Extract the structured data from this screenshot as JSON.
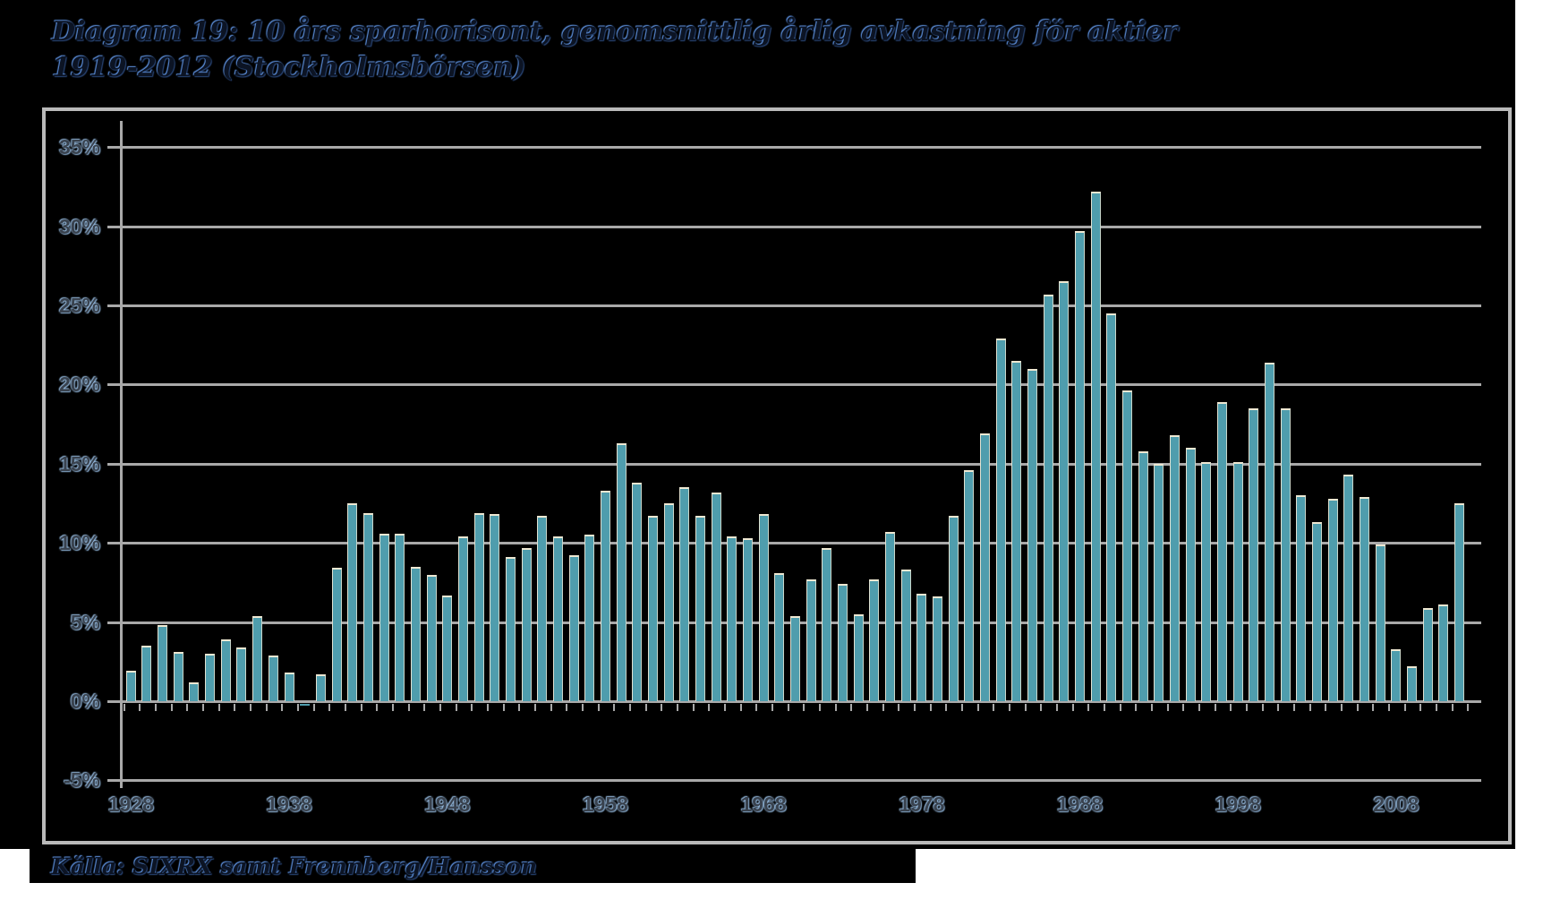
{
  "title": {
    "line1": "Diagram 19: 10 års sparhorisont, genomsnittlig årlig avkastning för aktier",
    "line2": "1919-2012 (Stockholmsbörsen)"
  },
  "source": {
    "label": "Källa: SIXRX samt Frennberg/Hansson"
  },
  "chart_data": {
    "type": "bar",
    "title": "Diagram 19: 10 års sparhorisont, genomsnittlig årlig avkastning för aktier 1919-2012 (Stockholmsbörsen)",
    "xlabel": "",
    "ylabel": "",
    "ylim": [
      -5,
      35
    ],
    "grid": true,
    "legend": "none",
    "start_year": 1928,
    "values": [
      1.9,
      3.5,
      4.8,
      3.1,
      1.2,
      3.0,
      3.9,
      3.4,
      5.4,
      2.9,
      1.8,
      -0.2,
      1.7,
      8.4,
      12.5,
      11.9,
      10.6,
      10.6,
      8.5,
      8.0,
      6.7,
      10.4,
      11.9,
      11.8,
      9.1,
      9.7,
      11.7,
      10.4,
      9.2,
      10.5,
      13.3,
      16.3,
      13.8,
      11.7,
      12.5,
      13.5,
      11.7,
      13.2,
      10.4,
      10.3,
      11.8,
      8.1,
      5.4,
      7.7,
      9.7,
      7.4,
      5.5,
      7.7,
      10.7,
      8.3,
      6.8,
      6.6,
      11.7,
      14.6,
      16.9,
      22.9,
      21.5,
      21.0,
      25.7,
      26.5,
      29.7,
      32.2,
      24.5,
      19.6,
      15.8,
      15.0,
      16.8,
      16.0,
      15.1,
      18.9,
      15.1,
      18.5,
      21.4,
      18.5,
      13.0,
      11.3,
      12.8,
      14.3,
      12.9,
      9.9,
      3.3,
      2.2,
      5.9,
      6.1,
      12.5
    ],
    "y_ticks": [
      {
        "label": "35%",
        "value": 35
      },
      {
        "label": "30%",
        "value": 30
      },
      {
        "label": "25%",
        "value": 25
      },
      {
        "label": "20%",
        "value": 20
      },
      {
        "label": "15%",
        "value": 15
      },
      {
        "label": "10%",
        "value": 10
      },
      {
        "label": "5%",
        "value": 5
      },
      {
        "label": "0%",
        "value": 0
      },
      {
        "label": "-5%",
        "value": -5
      }
    ],
    "x_ticks": [
      {
        "label": "1928",
        "year": 1928
      },
      {
        "label": "1938",
        "year": 1938
      },
      {
        "label": "1948",
        "year": 1948
      },
      {
        "label": "1958",
        "year": 1958
      },
      {
        "label": "1968",
        "year": 1968
      },
      {
        "label": "1978",
        "year": 1978
      },
      {
        "label": "1988",
        "year": 1988
      },
      {
        "label": "1998",
        "year": 1998
      },
      {
        "label": "2008",
        "year": 2008
      }
    ],
    "colors": {
      "bar_fill": "#4f9dad",
      "bar_edge": "#efe8d2",
      "grid": "#a9a9a9",
      "frame": "#b9b9b9",
      "background": "#000000",
      "page": "#ffffff",
      "label_text": "#39424e",
      "title_text": "#0c1424",
      "title_glow": "#6094e0"
    }
  }
}
